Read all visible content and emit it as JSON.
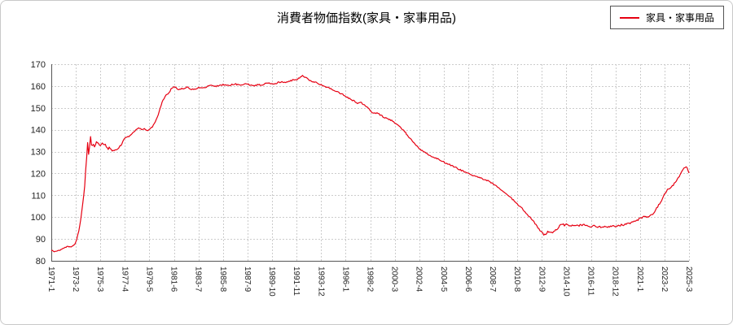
{
  "chart_data": {
    "type": "line",
    "title": "消費者物価指数(家具・家事用品)",
    "grid": true,
    "legend_position": "top-right",
    "color": "#e60012",
    "grid_color": "#cccccc",
    "axis_color": "#555555",
    "background": "#ffffff",
    "ylim": [
      80,
      170
    ],
    "yticks": [
      80,
      90,
      100,
      110,
      120,
      130,
      140,
      150,
      160,
      170
    ],
    "x_start": "1971-1",
    "x_end": "2025-3",
    "xtick_month_step": 25,
    "xtick_labels": [
      "1971-1",
      "1973-2",
      "1975-3",
      "1977-4",
      "1979-5",
      "1981-6",
      "1983-7",
      "1985-8",
      "1987-9",
      "1989-10",
      "1991-11",
      "1993-12",
      "1996-1",
      "1998-2",
      "2000-3",
      "2002-4",
      "2004-5",
      "2006-6",
      "2008-7",
      "2010-8",
      "2012-9",
      "2014-10",
      "2016-11",
      "2018-12",
      "2021-1",
      "2023-2",
      "2025-3"
    ],
    "sampling": "monthly values interpolated between anchor points [year_decimal, index_value]",
    "series": [
      {
        "name": "家具・家事用品",
        "anchor_points": [
          [
            1971.0,
            84.8
          ],
          [
            1971.25,
            84.2
          ],
          [
            1971.5,
            84.6
          ],
          [
            1971.75,
            85.0
          ],
          [
            1972.0,
            85.8
          ],
          [
            1972.33,
            86.4
          ],
          [
            1972.67,
            86.3
          ],
          [
            1973.0,
            87.5
          ],
          [
            1973.17,
            90.0
          ],
          [
            1973.33,
            93.5
          ],
          [
            1973.5,
            99.0
          ],
          [
            1973.67,
            106.0
          ],
          [
            1973.83,
            114.0
          ],
          [
            1973.92,
            121.0
          ],
          [
            1974.0,
            128.0
          ],
          [
            1974.08,
            133.5
          ],
          [
            1974.17,
            129.5
          ],
          [
            1974.25,
            132.0
          ],
          [
            1974.33,
            136.5
          ],
          [
            1974.42,
            133.0
          ],
          [
            1974.58,
            132.5
          ],
          [
            1974.75,
            133.5
          ],
          [
            1974.92,
            134.5
          ],
          [
            1975.08,
            132.5
          ],
          [
            1975.25,
            133.5
          ],
          [
            1975.42,
            134.0
          ],
          [
            1975.58,
            132.5
          ],
          [
            1975.75,
            131.5
          ],
          [
            1975.92,
            132.0
          ],
          [
            1976.17,
            130.8
          ],
          [
            1976.42,
            130.5
          ],
          [
            1976.67,
            131.5
          ],
          [
            1976.92,
            133.0
          ],
          [
            1977.17,
            135.5
          ],
          [
            1977.42,
            136.8
          ],
          [
            1977.67,
            137.2
          ],
          [
            1977.92,
            138.5
          ],
          [
            1978.17,
            140.0
          ],
          [
            1978.42,
            141.0
          ],
          [
            1978.67,
            140.0
          ],
          [
            1978.92,
            140.3
          ],
          [
            1979.17,
            139.8
          ],
          [
            1979.42,
            140.5
          ],
          [
            1979.67,
            142.0
          ],
          [
            1979.92,
            144.5
          ],
          [
            1980.17,
            148.5
          ],
          [
            1980.42,
            152.5
          ],
          [
            1980.67,
            155.5
          ],
          [
            1980.92,
            156.5
          ],
          [
            1981.17,
            158.5
          ],
          [
            1981.42,
            159.8
          ],
          [
            1981.67,
            158.8
          ],
          [
            1981.92,
            158.5
          ],
          [
            1982.25,
            159.0
          ],
          [
            1982.58,
            159.5
          ],
          [
            1982.92,
            158.3
          ],
          [
            1983.25,
            158.8
          ],
          [
            1983.58,
            159.3
          ],
          [
            1983.92,
            159.0
          ],
          [
            1984.25,
            159.8
          ],
          [
            1984.58,
            160.2
          ],
          [
            1984.92,
            159.8
          ],
          [
            1985.25,
            160.3
          ],
          [
            1985.58,
            160.6
          ],
          [
            1985.92,
            160.2
          ],
          [
            1986.25,
            160.5
          ],
          [
            1986.58,
            161.0
          ],
          [
            1986.92,
            160.4
          ],
          [
            1987.25,
            160.8
          ],
          [
            1987.58,
            161.2
          ],
          [
            1987.92,
            160.3
          ],
          [
            1988.25,
            160.2
          ],
          [
            1988.58,
            160.6
          ],
          [
            1988.92,
            160.4
          ],
          [
            1989.25,
            161.5
          ],
          [
            1989.58,
            161.2
          ],
          [
            1989.92,
            161.0
          ],
          [
            1990.25,
            161.6
          ],
          [
            1990.58,
            162.0
          ],
          [
            1990.92,
            161.8
          ],
          [
            1991.25,
            162.4
          ],
          [
            1991.58,
            162.8
          ],
          [
            1991.92,
            163.2
          ],
          [
            1992.17,
            164.2
          ],
          [
            1992.33,
            165.0
          ],
          [
            1992.58,
            164.0
          ],
          [
            1992.83,
            163.0
          ],
          [
            1993.08,
            162.2
          ],
          [
            1993.42,
            161.8
          ],
          [
            1993.75,
            161.0
          ],
          [
            1994.08,
            160.2
          ],
          [
            1994.42,
            159.5
          ],
          [
            1994.75,
            158.8
          ],
          [
            1995.08,
            157.8
          ],
          [
            1995.42,
            157.0
          ],
          [
            1995.75,
            156.3
          ],
          [
            1996.08,
            155.0
          ],
          [
            1996.42,
            154.0
          ],
          [
            1996.75,
            153.0
          ],
          [
            1997.08,
            152.0
          ],
          [
            1997.33,
            152.5
          ],
          [
            1997.67,
            150.8
          ],
          [
            1997.92,
            149.8
          ],
          [
            1998.17,
            148.3
          ],
          [
            1998.42,
            147.5
          ],
          [
            1998.67,
            147.8
          ],
          [
            1998.92,
            146.8
          ],
          [
            1999.25,
            145.8
          ],
          [
            1999.58,
            145.0
          ],
          [
            1999.92,
            144.2
          ],
          [
            2000.25,
            142.8
          ],
          [
            2000.58,
            141.3
          ],
          [
            2000.92,
            139.8
          ],
          [
            2001.25,
            137.5
          ],
          [
            2001.58,
            135.3
          ],
          [
            2001.92,
            133.5
          ],
          [
            2002.25,
            131.5
          ],
          [
            2002.58,
            130.0
          ],
          [
            2002.92,
            129.0
          ],
          [
            2003.25,
            128.0
          ],
          [
            2003.58,
            127.2
          ],
          [
            2003.92,
            126.5
          ],
          [
            2004.25,
            125.5
          ],
          [
            2004.58,
            124.5
          ],
          [
            2004.92,
            123.8
          ],
          [
            2005.25,
            123.0
          ],
          [
            2005.58,
            122.0
          ],
          [
            2005.92,
            121.2
          ],
          [
            2006.25,
            120.2
          ],
          [
            2006.58,
            119.6
          ],
          [
            2006.92,
            119.0
          ],
          [
            2007.25,
            118.3
          ],
          [
            2007.58,
            117.6
          ],
          [
            2007.92,
            117.0
          ],
          [
            2008.25,
            116.2
          ],
          [
            2008.58,
            115.0
          ],
          [
            2008.92,
            113.8
          ],
          [
            2009.25,
            112.0
          ],
          [
            2009.58,
            110.8
          ],
          [
            2009.92,
            109.5
          ],
          [
            2010.25,
            107.8
          ],
          [
            2010.58,
            105.8
          ],
          [
            2010.92,
            104.2
          ],
          [
            2011.25,
            102.2
          ],
          [
            2011.58,
            100.2
          ],
          [
            2011.92,
            98.5
          ],
          [
            2012.17,
            96.5
          ],
          [
            2012.42,
            94.3
          ],
          [
            2012.67,
            92.8
          ],
          [
            2012.83,
            92.2
          ],
          [
            2013.0,
            92.0
          ],
          [
            2013.17,
            93.8
          ],
          [
            2013.33,
            92.8
          ],
          [
            2013.58,
            93.0
          ],
          [
            2013.83,
            94.2
          ],
          [
            2014.08,
            95.0
          ],
          [
            2014.33,
            97.0
          ],
          [
            2014.58,
            96.3
          ],
          [
            2014.83,
            96.6
          ],
          [
            2015.17,
            96.0
          ],
          [
            2015.5,
            96.5
          ],
          [
            2015.83,
            96.2
          ],
          [
            2016.17,
            96.6
          ],
          [
            2016.5,
            95.8
          ],
          [
            2016.83,
            95.5
          ],
          [
            2017.17,
            96.0
          ],
          [
            2017.5,
            95.4
          ],
          [
            2017.83,
            95.7
          ],
          [
            2018.17,
            95.4
          ],
          [
            2018.5,
            96.0
          ],
          [
            2018.83,
            95.8
          ],
          [
            2019.17,
            96.2
          ],
          [
            2019.5,
            96.4
          ],
          [
            2019.83,
            96.8
          ],
          [
            2020.17,
            97.4
          ],
          [
            2020.5,
            98.2
          ],
          [
            2020.83,
            98.8
          ],
          [
            2021.08,
            99.6
          ],
          [
            2021.33,
            100.4
          ],
          [
            2021.58,
            99.9
          ],
          [
            2021.83,
            100.6
          ],
          [
            2022.08,
            101.5
          ],
          [
            2022.33,
            103.2
          ],
          [
            2022.58,
            105.5
          ],
          [
            2022.83,
            107.8
          ],
          [
            2023.08,
            110.5
          ],
          [
            2023.25,
            112.0
          ],
          [
            2023.5,
            113.2
          ],
          [
            2023.75,
            114.2
          ],
          [
            2024.0,
            115.8
          ],
          [
            2024.25,
            118.0
          ],
          [
            2024.5,
            120.5
          ],
          [
            2024.75,
            122.5
          ],
          [
            2024.92,
            123.2
          ],
          [
            2025.0,
            122.5
          ],
          [
            2025.08,
            121.3
          ],
          [
            2025.17,
            120.5
          ]
        ]
      }
    ]
  }
}
